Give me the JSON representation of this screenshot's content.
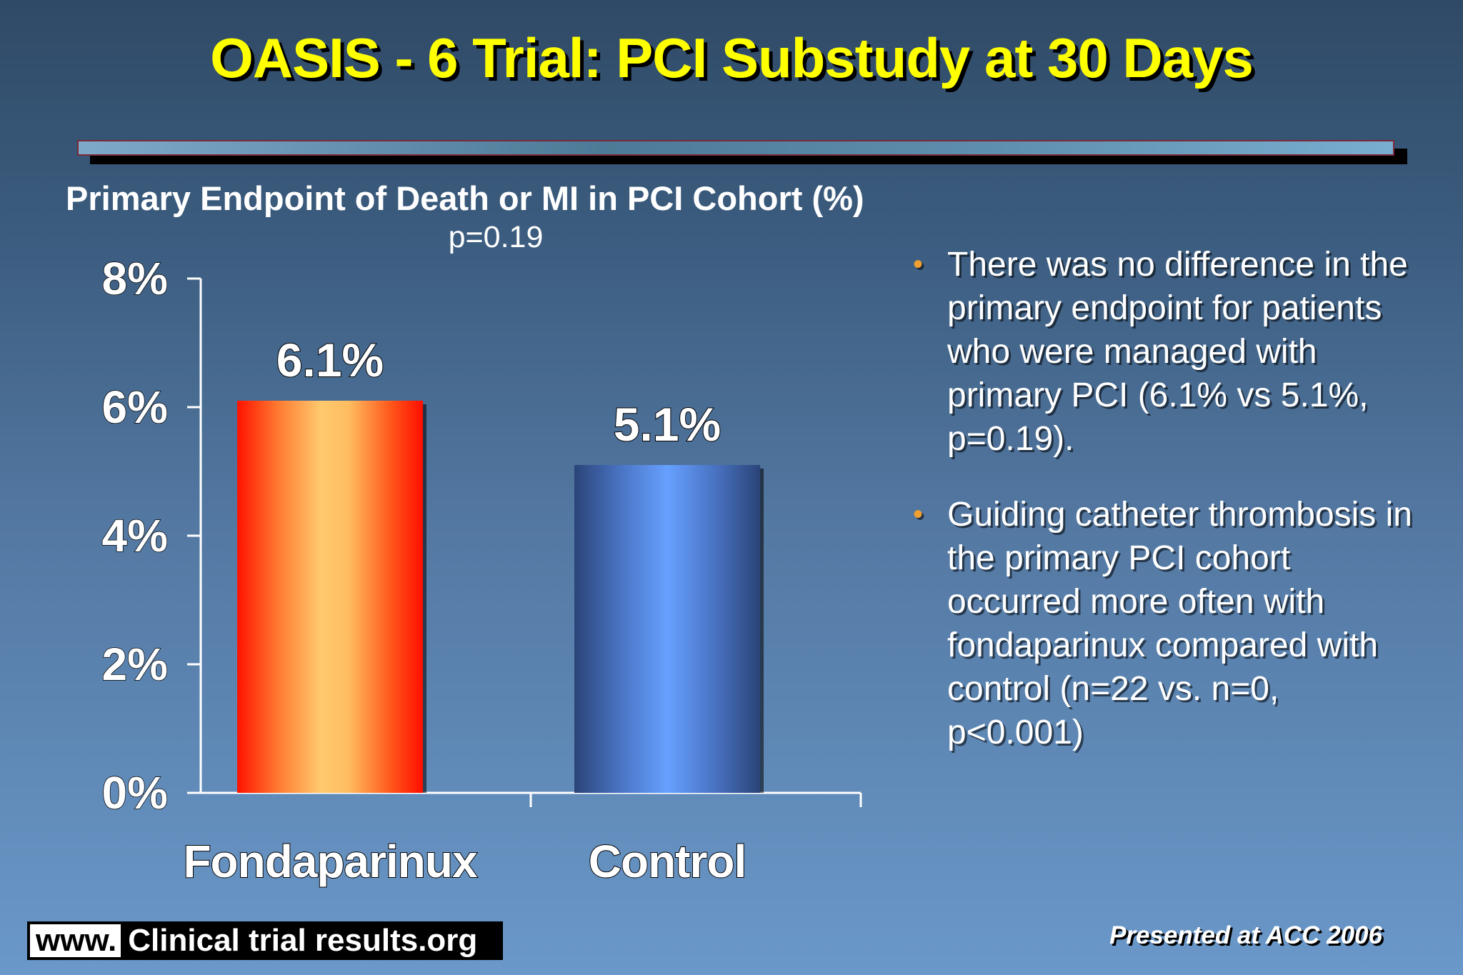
{
  "title": "OASIS - 6 Trial: PCI Substudy at 30 Days",
  "chart_data": {
    "type": "bar",
    "title": "Primary Endpoint of Death or MI in PCI Cohort (%)",
    "annotation": "p=0.19",
    "categories": [
      "Fondaparinux",
      "Control"
    ],
    "values": [
      6.1,
      5.1
    ],
    "value_labels": [
      "6.1%",
      "5.1%"
    ],
    "ylim": [
      0,
      8
    ],
    "yticks": [
      0,
      2,
      4,
      6,
      8
    ],
    "ytick_labels": [
      "0%",
      "2%",
      "4%",
      "6%",
      "8%"
    ],
    "xlabel": "",
    "ylabel": "",
    "grid": false,
    "colors": {
      "Fondaparinux": "#ff1a00",
      "Control": "#5b8fe8"
    }
  },
  "bullets": [
    "There was no difference in the primary endpoint for patients who were managed with primary PCI (6.1% vs 5.1%, p=0.19).",
    "Guiding catheter thrombosis in the primary PCI cohort occurred more often with fondaparinux compared with control (n=22 vs. n=0, p<0.001)"
  ],
  "footer": {
    "logo_www": "www.",
    "logo_text": "Clinical trial results.org",
    "presented": "Presented at ACC 2006"
  },
  "colors": {
    "title": "#ffff00",
    "bullet_marker": "#f0a030"
  }
}
